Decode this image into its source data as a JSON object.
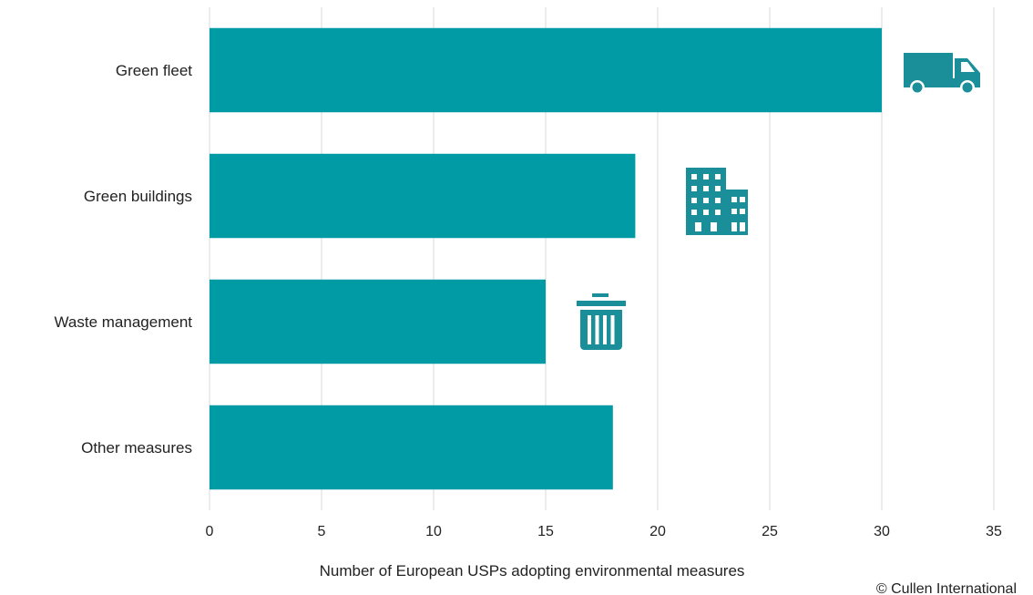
{
  "chart_data": {
    "type": "bar",
    "orientation": "horizontal",
    "categories": [
      "Green fleet",
      "Green buildings",
      "Waste management",
      "Other measures"
    ],
    "values": [
      30,
      19,
      15,
      18
    ],
    "category_icons": [
      "truck-icon",
      "building-icon",
      "trash-bin-icon",
      null
    ],
    "xlabel": "Number  of European USPs adopting environmental measures",
    "xlim": [
      0,
      35
    ],
    "xticks": [
      "0",
      "5",
      "10",
      "15",
      "20",
      "25",
      "30",
      "35"
    ],
    "grid": "vertical",
    "bar_color": "#009ba4",
    "icon_color": "#1a8f99",
    "legend": "none"
  },
  "credit": "© Cullen International"
}
